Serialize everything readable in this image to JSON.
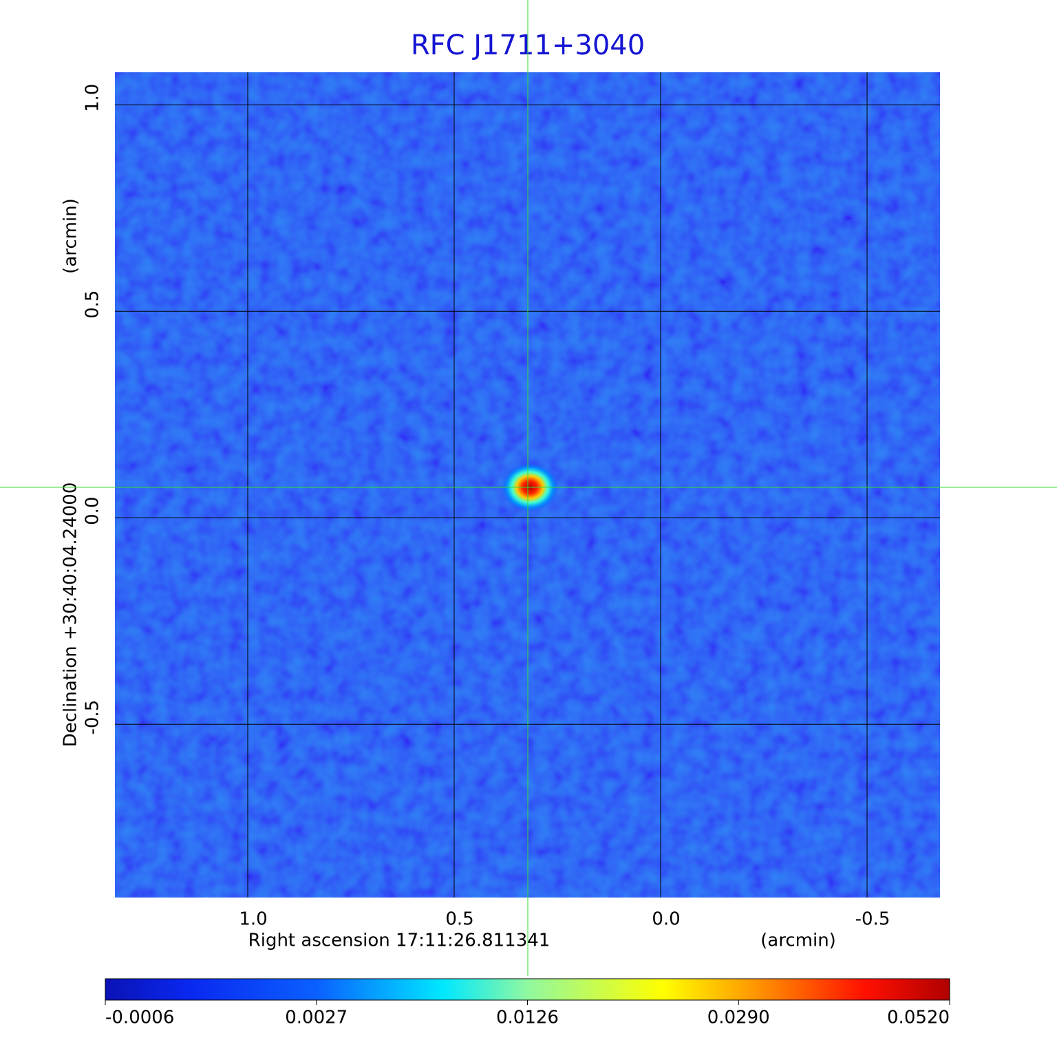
{
  "chart_data": {
    "type": "image",
    "title": "RFC J1711+3040",
    "x_label": "Right ascension  17:11:26.811341",
    "x_unit": "(arcmin)",
    "y_label": "Declination  +30:40:04.24000",
    "y_unit": "(arcmin)",
    "xlim": [
      1.325,
      -0.68
    ],
    "ylim": [
      -0.923,
      1.082
    ],
    "xticks": [
      {
        "value": 1,
        "label": "1.0"
      },
      {
        "value": 0.5,
        "label": "0.5"
      },
      {
        "value": 0,
        "label": "0.0"
      },
      {
        "value": -0.5,
        "label": "-0.5"
      }
    ],
    "yticks": [
      {
        "value": 1,
        "label": "1.0"
      },
      {
        "value": 0.5,
        "label": "0.5"
      },
      {
        "value": 0,
        "label": "0.0"
      },
      {
        "value": -0.5,
        "label": "-0.5"
      }
    ],
    "grid": true,
    "colorbar_ticks": [
      -0.0006,
      0.0027,
      {
        "value": 0.0126,
        "label": "0.0126"
      },
      {
        "value": 0.029,
        "label": "0.0290"
      },
      {
        "value": 0.052,
        "label": "0.0520"
      }
    ]
  }
}
